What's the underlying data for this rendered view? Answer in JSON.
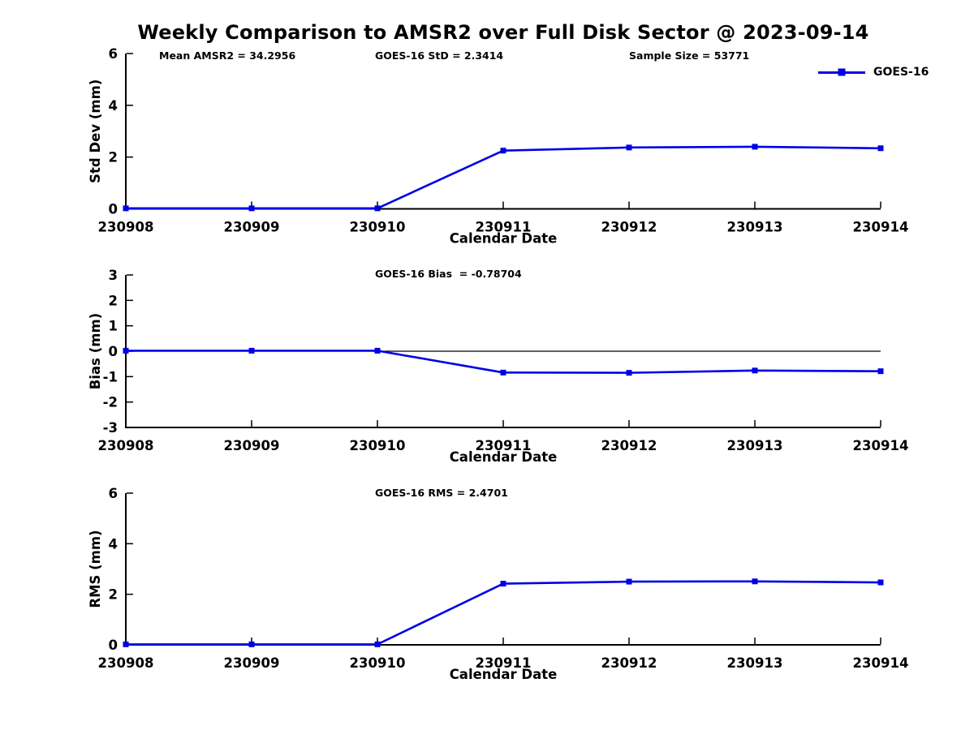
{
  "title": "Weekly Comparison to AMSR2 over Full Disk Sector @ 2023-09-14",
  "legend": {
    "label": "GOES-16"
  },
  "colors": {
    "series": "#0000e6",
    "axis": "#000000"
  },
  "chart_data": [
    {
      "type": "line",
      "name": "std-dev-panel",
      "categories": [
        "230908",
        "230909",
        "230910",
        "230911",
        "230912",
        "230913",
        "230914"
      ],
      "series": [
        {
          "name": "GOES-16",
          "color": "#0000e6",
          "marker": "square",
          "values": [
            0.02,
            0.02,
            0.02,
            2.25,
            2.37,
            2.4,
            2.3414
          ]
        }
      ],
      "annotations": [
        "Mean AMSR2 = 34.2956",
        "GOES-16 StD = 2.3414",
        "Sample Size = 53771"
      ],
      "xlabel": "Calendar Date",
      "ylabel": "Std Dev (mm)",
      "ylim": [
        0,
        6
      ],
      "yticks": [
        0,
        2,
        4,
        6
      ],
      "grid": false,
      "zero_line": false,
      "legend_position": "top-right"
    },
    {
      "type": "line",
      "name": "bias-panel",
      "categories": [
        "230908",
        "230909",
        "230910",
        "230911",
        "230912",
        "230913",
        "230914"
      ],
      "series": [
        {
          "name": "GOES-16",
          "color": "#0000e6",
          "marker": "square",
          "values": [
            0.02,
            0.02,
            0.02,
            -0.84,
            -0.85,
            -0.76,
            -0.78704
          ]
        }
      ],
      "annotations": [
        "GOES-16 Bias  = -0.78704"
      ],
      "xlabel": "Calendar Date",
      "ylabel": "Bias (mm)",
      "ylim": [
        -3,
        3
      ],
      "yticks": [
        -3,
        -2,
        -1,
        0,
        1,
        2,
        3
      ],
      "grid": false,
      "zero_line": true,
      "legend_position": "none"
    },
    {
      "type": "line",
      "name": "rms-panel",
      "categories": [
        "230908",
        "230909",
        "230910",
        "230911",
        "230912",
        "230913",
        "230914"
      ],
      "series": [
        {
          "name": "GOES-16",
          "color": "#0000e6",
          "marker": "square",
          "values": [
            0.02,
            0.02,
            0.02,
            2.42,
            2.5,
            2.51,
            2.4701
          ]
        }
      ],
      "annotations": [
        "GOES-16 RMS = 2.4701"
      ],
      "xlabel": "Calendar Date",
      "ylabel": "RMS (mm)",
      "ylim": [
        0,
        6
      ],
      "yticks": [
        0,
        2,
        4,
        6
      ],
      "grid": false,
      "zero_line": false,
      "legend_position": "none"
    }
  ]
}
